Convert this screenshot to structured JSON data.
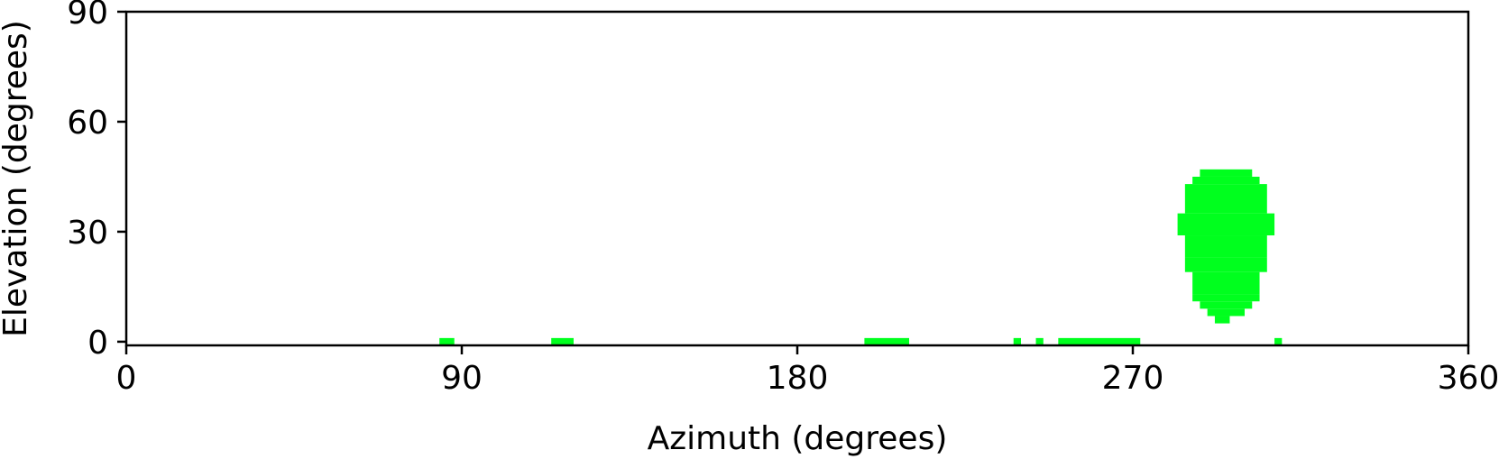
{
  "chart_data": {
    "type": "heatmap",
    "title": "",
    "xlabel": "Azimuth (degrees)",
    "ylabel": "Elevation (degrees)",
    "xlim": [
      0,
      360
    ],
    "ylim": [
      -1,
      90
    ],
    "xticks": [
      "0",
      "90",
      "180",
      "270",
      "360"
    ],
    "yticks": [
      "0",
      "30",
      "60",
      "90"
    ],
    "grid": false,
    "cell_color": "#00ff1e",
    "cells": [
      {
        "az": [
          84,
          88
        ],
        "el": [
          -1,
          1
        ]
      },
      {
        "az": [
          114,
          120
        ],
        "el": [
          -1,
          1
        ]
      },
      {
        "az": [
          198,
          210
        ],
        "el": [
          -1,
          1
        ]
      },
      {
        "az": [
          238,
          240
        ],
        "el": [
          -1,
          1
        ]
      },
      {
        "az": [
          244,
          246
        ],
        "el": [
          -1,
          1
        ]
      },
      {
        "az": [
          250,
          272
        ],
        "el": [
          -1,
          1
        ]
      },
      {
        "az": [
          308,
          310
        ],
        "el": [
          -1,
          1
        ]
      },
      {
        "az": [
          284,
          306
        ],
        "el": [
          23,
          29
        ]
      },
      {
        "az": [
          282,
          308
        ],
        "el": [
          29,
          35
        ]
      },
      {
        "az": [
          284,
          306
        ],
        "el": [
          35,
          43
        ]
      },
      {
        "az": [
          286,
          304
        ],
        "el": [
          43,
          45
        ]
      },
      {
        "az": [
          288,
          302
        ],
        "el": [
          45,
          47
        ]
      },
      {
        "az": [
          286,
          304
        ],
        "el": [
          11,
          13
        ]
      },
      {
        "az": [
          286,
          304
        ],
        "el": [
          13,
          19
        ]
      },
      {
        "az": [
          284,
          306
        ],
        "el": [
          19,
          23
        ]
      },
      {
        "az": [
          288,
          302
        ],
        "el": [
          9,
          11
        ]
      },
      {
        "az": [
          290,
          300
        ],
        "el": [
          7,
          9
        ]
      },
      {
        "az": [
          292,
          296
        ],
        "el": [
          5,
          7
        ]
      }
    ]
  }
}
